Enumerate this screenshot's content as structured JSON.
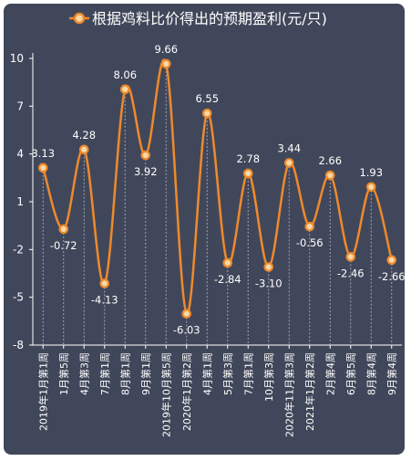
{
  "chart_data": {
    "type": "line",
    "title": "",
    "xlabel": "",
    "ylabel": "",
    "legend": {
      "position": "top-center",
      "label": "根据鸡料比价得出的预期盈利(元/只)"
    },
    "series": [
      {
        "name": "根据鸡料比价得出的预期盈利(元/只)",
        "values": [
          3.13,
          -0.72,
          4.28,
          -4.13,
          8.06,
          3.92,
          9.66,
          -6.03,
          6.55,
          -2.84,
          2.78,
          -3.1,
          3.44,
          -0.56,
          2.66,
          -2.46,
          1.93,
          -2.66
        ],
        "labels": [
          "3.13",
          "-0.72",
          "4.28",
          "-4.13",
          "8.06",
          "3.92",
          "9.66",
          "-6.03",
          "6.55",
          "-2.84",
          "2.78",
          "-3.10",
          "3.44",
          "-0.56",
          "2.66",
          "-2.46",
          "1.93",
          "-2.66"
        ]
      }
    ],
    "categories": [
      "2019年1月第1周",
      "1月第5周",
      "4月第3周",
      "7月第1周",
      "8月第1周",
      "9月第1周",
      "2019年10月第5周",
      "2020年1月第2周",
      "4月第1周",
      "5月第3周",
      "7月第1周",
      "10月第3周",
      "2020年11月第3周",
      "2021年1月第2周",
      "2月第4周",
      "6月第5周",
      "8月第4周",
      "9月第4周"
    ],
    "y_ticks": [
      "10",
      "7",
      "4",
      "1",
      "-2",
      "-5",
      "-8"
    ],
    "ylim": [
      -8,
      10
    ],
    "grid": false,
    "colors": {
      "line": "#ee8a2c",
      "marker_fill": "#f7d9a8",
      "background": "#41475a",
      "text": "#ffffff",
      "axis": "#ffffff",
      "dropline": "#9ea3b3"
    }
  }
}
